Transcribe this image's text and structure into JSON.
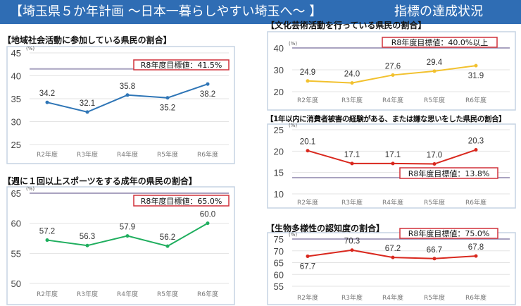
{
  "header": {
    "title": "【埼玉県５か年計画 〜日本一暮らしやすい埼玉へ〜 】",
    "subtitle": "指標の達成状況"
  },
  "colors": {
    "header": "#2f6db4",
    "blue": "#2e75b6",
    "green": "#1fae5e",
    "yellow": "#f2c12e",
    "red": "#d9281e",
    "target_line": "#a9a3c0",
    "target_box": "#d0313a"
  },
  "chart_data": [
    {
      "type": "line",
      "title": "【地域社会活動に参加している県民の割合】",
      "unit": "(%)",
      "categories": [
        "R2年度",
        "R3年度",
        "R4年度",
        "R5年度",
        "R6年度"
      ],
      "values": [
        34.2,
        32.1,
        35.8,
        35.2,
        38.2
      ],
      "labels": [
        "34.2",
        "32.1",
        "35.8",
        "35.2",
        "38.2"
      ],
      "ylim": [
        25,
        45
      ],
      "yticks": [
        "25",
        "30",
        "35",
        "40",
        "45"
      ],
      "target": 41.5,
      "target_label": "R8年度目標値：41.5%",
      "color": "#2e75b6"
    },
    {
      "type": "line",
      "title": "【週に１回以上スポーツをする成年の県民の割合】",
      "unit": "(%)",
      "categories": [
        "R2年度",
        "R3年度",
        "R4年度",
        "R5年度",
        "R6年度"
      ],
      "values": [
        57.2,
        56.3,
        57.9,
        56.2,
        60.0
      ],
      "labels": [
        "57.2",
        "56.3",
        "57.9",
        "56.2",
        "60.0"
      ],
      "ylim": [
        50,
        65
      ],
      "yticks": [
        "50",
        "55",
        "60",
        "65"
      ],
      "target": 65.0,
      "target_label": "R8年度目標値：65.0%",
      "color": "#1fae5e"
    },
    {
      "type": "line",
      "title": "【文化芸術活動を行っている県民の割合】",
      "unit": "(%)",
      "categories": [
        "R2年度",
        "R3年度",
        "R4年度",
        "R5年度",
        "R6年度"
      ],
      "values": [
        24.9,
        24.0,
        27.6,
        29.4,
        31.9
      ],
      "labels": [
        "24.9",
        "24.0",
        "27.6",
        "29.4",
        "31.9"
      ],
      "ylim": [
        20,
        40
      ],
      "yticks": [
        "20",
        "30",
        "40"
      ],
      "target": 40.0,
      "target_label": "R8年度目標値：40.0%以上",
      "color": "#f2c12e"
    },
    {
      "type": "line",
      "title": "【1年以内に消費者被害の経験がある、または嫌な思いをした県民の割合】",
      "unit": "(%)",
      "categories": [
        "R2年度",
        "R3年度",
        "R4年度",
        "R5年度",
        "R6年度"
      ],
      "values": [
        20.1,
        17.1,
        17.1,
        17.0,
        20.3
      ],
      "labels": [
        "20.1",
        "17.1",
        "17.1",
        "17.0",
        "20.3"
      ],
      "ylim": [
        10,
        25
      ],
      "yticks": [
        "10",
        "15",
        "20",
        "25"
      ],
      "target": 13.8,
      "target_label": "R8年度目標値：13.8%",
      "color": "#d9281e"
    },
    {
      "type": "line",
      "title": "【生物多様性の認知度の割合】",
      "unit": "(%)",
      "categories": [
        "R2年度",
        "R3年度",
        "R4年度",
        "R5年度",
        "R6年度"
      ],
      "values": [
        67.7,
        70.3,
        67.2,
        66.7,
        67.8
      ],
      "labels": [
        "67.7",
        "70.3",
        "67.2",
        "66.7",
        "67.8"
      ],
      "ylim": [
        55,
        75
      ],
      "yticks": [
        "55",
        "60",
        "65",
        "70",
        "75"
      ],
      "target": 75.0,
      "target_label": "R8年度目標値：75.0%",
      "color": "#d9281e"
    }
  ]
}
